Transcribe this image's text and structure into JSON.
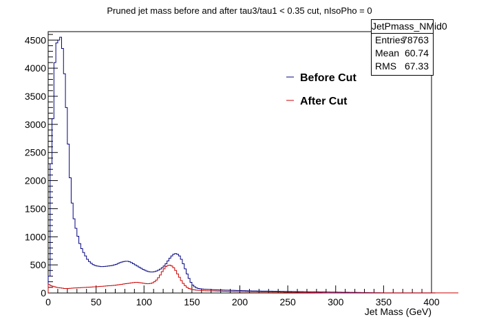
{
  "window": {
    "title": "Pruned jet mass before and after tau3/tau1 < 0.35 cut, nIsoPho = 0"
  },
  "stats_box": {
    "name": "JetPmass_NMid0",
    "rows": [
      {
        "label": "Entries",
        "value": "78763"
      },
      {
        "label": "Mean",
        "value": "60.74"
      },
      {
        "label": "RMS",
        "value": "67.33"
      }
    ]
  },
  "colors": {
    "before": "#000080",
    "after": "#cc0000",
    "axis": "#000000"
  },
  "chart_data": {
    "type": "line",
    "title": "Pruned jet mass before and after tau3/tau1 < 0.35 cut, nIsoPho = 0",
    "xlabel": "Jet Mass (GeV)",
    "ylabel": "",
    "xlim": [
      0,
      400
    ],
    "ylim": [
      0,
      4650
    ],
    "bin_width": 2,
    "x_ticks": [
      0,
      50,
      100,
      150,
      200,
      250,
      300,
      350,
      400
    ],
    "y_ticks": [
      0,
      500,
      1000,
      1500,
      2000,
      2500,
      3000,
      3500,
      4000,
      4500
    ],
    "grid": false,
    "legend": {
      "position": "top-right"
    },
    "series": [
      {
        "name": "Before Cut",
        "color": "#000080",
        "values": [
          300,
          2300,
          3100,
          4100,
          4450,
          4500,
          4550,
          4350,
          3900,
          3300,
          2650,
          2050,
          1600,
          1320,
          1150,
          1010,
          880,
          790,
          720,
          660,
          600,
          560,
          530,
          505,
          490,
          480,
          475,
          470,
          470,
          472,
          475,
          480,
          485,
          490,
          500,
          510,
          525,
          540,
          550,
          560,
          565,
          565,
          555,
          540,
          520,
          500,
          480,
          460,
          440,
          420,
          405,
          390,
          380,
          375,
          375,
          380,
          390,
          405,
          425,
          450,
          480,
          520,
          570,
          620,
          660,
          690,
          700,
          690,
          660,
          600,
          520,
          430,
          340,
          260,
          190,
          140,
          110,
          90,
          80,
          75,
          70,
          68,
          66,
          64,
          62,
          60,
          58,
          56,
          55,
          54,
          53,
          52,
          51,
          50,
          49,
          48,
          47,
          46,
          45,
          44,
          43,
          42,
          41,
          40,
          39,
          38,
          37,
          36,
          36,
          35,
          35,
          34,
          34,
          33,
          33,
          32,
          32,
          31,
          31,
          30,
          30,
          29,
          29,
          28,
          28,
          27,
          27,
          26,
          26,
          25,
          25,
          24,
          24,
          23,
          23,
          22,
          22,
          21,
          21,
          20,
          20,
          19,
          19,
          18,
          18,
          17,
          17,
          16,
          16,
          15,
          15,
          14,
          14,
          13,
          13,
          12,
          12,
          11,
          11,
          10,
          10,
          9,
          9,
          8,
          8,
          7,
          7,
          6,
          6,
          5,
          5,
          4,
          4,
          3,
          3,
          2,
          2,
          2,
          2,
          1,
          1,
          1,
          1,
          1,
          1,
          1,
          1,
          1,
          1,
          1,
          1,
          1,
          1,
          1,
          1,
          1,
          1,
          1,
          1,
          1,
          1,
          1
        ]
      },
      {
        "name": "After Cut",
        "color": "#cc0000",
        "values": [
          150,
          130,
          120,
          110,
          100,
          95,
          90,
          85,
          80,
          80,
          80,
          82,
          85,
          88,
          90,
          92,
          94,
          96,
          98,
          100,
          102,
          104,
          106,
          108,
          110,
          112,
          115,
          118,
          120,
          122,
          125,
          128,
          130,
          133,
          136,
          140,
          145,
          150,
          155,
          160,
          165,
          170,
          175,
          180,
          185,
          190,
          190,
          185,
          180,
          175,
          170,
          165,
          165,
          170,
          180,
          200,
          230,
          270,
          320,
          380,
          430,
          470,
          490,
          495,
          480,
          450,
          400,
          340,
          280,
          220,
          170,
          130,
          100,
          80,
          70,
          60,
          55,
          50,
          48,
          46,
          44,
          42,
          40,
          39,
          38,
          37,
          36,
          35,
          34,
          33,
          32,
          31,
          30,
          29,
          28,
          27,
          27,
          26,
          26,
          25,
          25,
          24,
          24,
          23,
          23,
          22,
          22,
          21,
          21,
          20,
          20,
          19,
          19,
          18,
          18,
          17,
          17,
          16,
          16,
          15,
          15,
          14,
          14,
          13,
          13,
          12,
          12,
          11,
          11,
          10,
          10,
          9,
          9,
          8,
          8,
          7,
          7,
          6,
          6,
          5,
          5,
          4,
          4,
          3,
          3,
          2,
          2,
          2,
          2,
          1,
          1,
          1,
          1,
          1,
          1,
          1,
          1,
          1,
          1,
          1,
          1,
          1,
          1,
          1,
          1,
          1,
          1,
          1,
          1,
          1,
          1,
          1,
          1,
          1,
          1,
          1,
          1,
          1,
          1,
          1,
          1,
          1,
          1,
          1,
          1,
          1,
          1,
          1,
          1,
          1,
          1,
          1,
          1,
          1,
          1,
          1,
          1,
          1,
          1,
          1,
          1,
          1,
          1,
          1,
          1,
          1,
          1,
          1,
          1,
          1,
          1,
          1,
          1,
          1
        ]
      }
    ]
  }
}
